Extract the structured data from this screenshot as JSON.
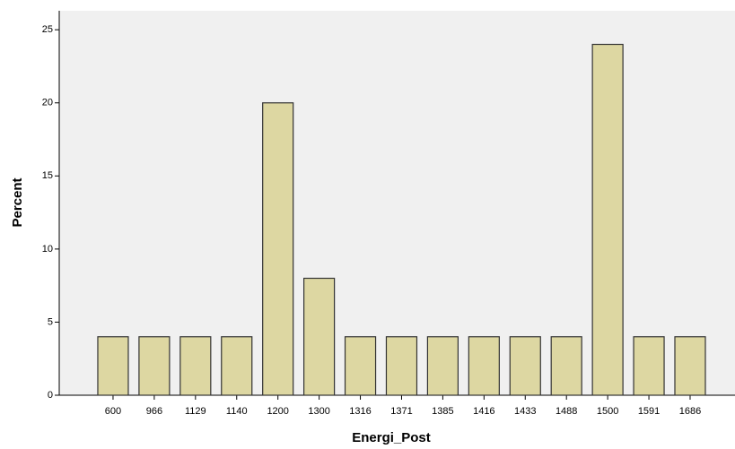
{
  "chart_data": {
    "type": "bar",
    "x_label": "Energi_Post",
    "y_label": "Percent",
    "categories": [
      "600",
      "966",
      "1129",
      "1140",
      "1200",
      "1300",
      "1316",
      "1371",
      "1385",
      "1416",
      "1433",
      "1488",
      "1500",
      "1591",
      "1686"
    ],
    "values": [
      4,
      4,
      4,
      4,
      20,
      8,
      4,
      4,
      4,
      4,
      4,
      4,
      24,
      4,
      4
    ],
    "color": "#ddd7a2",
    "ylim": [
      0,
      26.3
    ],
    "yticks": [
      0,
      5,
      10,
      15,
      20,
      25
    ],
    "grid": false
  }
}
